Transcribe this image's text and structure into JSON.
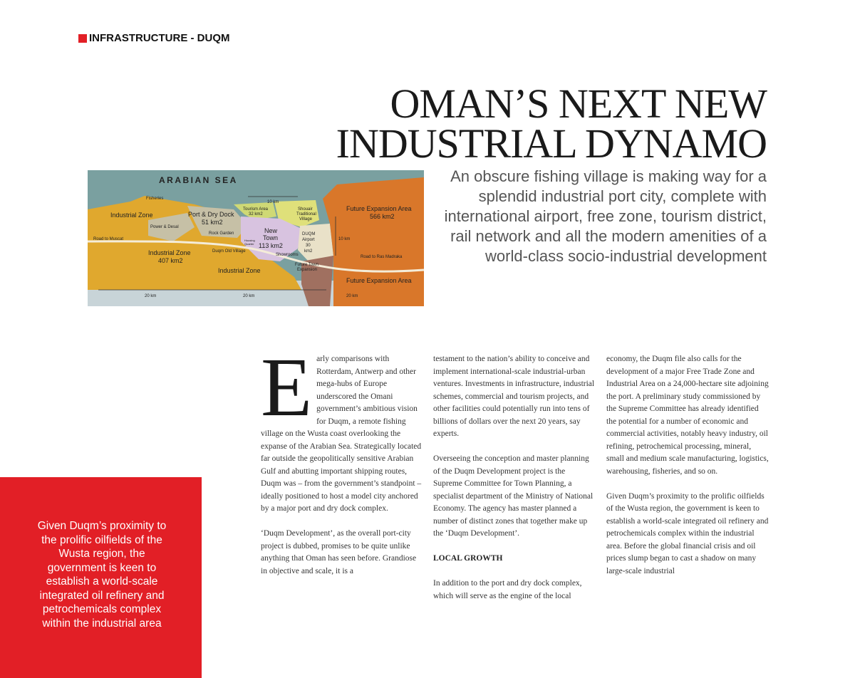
{
  "section_tag": "INFRASTRUCTURE - DUQM",
  "title": {
    "line1": "OMAN’S NEXT NEW",
    "line2": "INDUSTRIAL DYNAMO"
  },
  "subtitle": "An obscure fishing village is making way for a splendid industrial port city, complete with international airport, free zone, tourism district, rail network and all the modern amenities of a world-class socio-industrial development",
  "map": {
    "sea_label": "ARABIAN SEA",
    "labels": {
      "fisheries": "Fisheries",
      "industrial_zone_top": "Industrial Zone",
      "power_desal": "Power & Desal",
      "port_dry_dock": "Port & Dry Dock",
      "port_area": "51 km2",
      "rock_garden": "Rock Garden",
      "tourism_area": "Tourism Area",
      "tourism_km": "32 km2",
      "shouair": "Shouair",
      "traditional": "Traditional",
      "village": "Village",
      "new": "New",
      "town": "Town",
      "town_km": "113 km2",
      "housing": "Housing",
      "quarter": "Quarter",
      "duqm": "DUQM",
      "airport": "Airport",
      "airport_30": "30",
      "airport_km2": "km2",
      "road_muscat": "Road to Muscat",
      "industrial_zone_mid": "Industrial Zone",
      "industrial_zone_km": "407 km2",
      "duqm_old_village": "Duqm Old Village",
      "showrooms": "Showrooms",
      "industrial_zone_bottom": "Industrial Zone",
      "future_town": "Future Town",
      "expansion": "Expansion",
      "future_area_top": "Future Expansion Area",
      "future_area_km": "566 km2",
      "road_ras": "Road to Ras Madraka",
      "future_area_bottom": "Future Expansion Area",
      "scale_10km": "10 km",
      "scale_10km_v": "10 km",
      "scale_20km_1": "20 km",
      "scale_20km_2": "20 km",
      "scale_20km_3": "20 km"
    },
    "colors": {
      "sea": "#7aa0a0",
      "industrial": "#e0a82e",
      "expansion": "#d9772a",
      "town": "#d8c3e0",
      "tourism": "#cfd975",
      "land_pale": "#c6c0a6",
      "airport": "#e9e1c8",
      "brown": "#a07060",
      "bottom": "#c8d4d8"
    }
  },
  "body": {
    "dropcap": "E",
    "col1": [
      "arly comparisons with Rotterdam, Antwerp and other mega-hubs of Europe underscored the Omani government’s ambitious vision for Duqm, a remote fishing village on the Wusta coast overlooking the expanse of the Arabian Sea. Strategically located far outside the geopolitically sensitive Arabian Gulf and abutting important shipping routes, Duqm was – from the government’s standpoint – ideally positioned to host a model city anchored by a major port and dry dock complex.",
      "‘Duqm Development’, as the overall port-city project is dubbed, promises to be quite unlike anything that Oman has seen before. Grandiose in objective and scale, it is a"
    ],
    "col2": [
      "testament to the nation’s ability to conceive and implement international-scale industrial-urban ventures.  Investments in infrastructure, industrial schemes, commercial and tourism projects, and other facilities could potentially run into tens of billions of dollars over the next 20 years, say experts.",
      "Overseeing the conception and master planning of the Duqm Development project is the Supreme Committee for Town Planning, a specialist department of the Ministry of National Economy.  The agency has master planned a number of distinct zones that together make up the ‘Duqm Development’."
    ],
    "col2_heading": "LOCAL GROWTH",
    "col2_after": "In addition to the port and dry dock complex, which will serve as the engine of the local",
    "col3": [
      "economy, the Duqm file also calls for the development of a major Free Trade Zone and Industrial Area on a 24,000-hectare site adjoining the port. A preliminary study commissioned by the Supreme Committee has already identified the potential for a number of economic and commercial activities, notably heavy industry, oil refining, petrochemical processing, mineral, small and medium scale manufacturing, logistics, warehousing, fisheries, and so on.",
      "Given Duqm’s proximity to the prolific oilfields of the Wusta region, the government is keen to establish a world-scale integrated oil refinery and petrochemicals complex within the industrial area.  Before the global financial crisis and oil prices slump began to cast a shadow on many large-scale industrial"
    ]
  },
  "pull_quote": "Given Duqm’s proximity to the prolific oilfields of the Wusta region, the government is keen to establish a world-scale integrated oil refinery and petrochemicals complex within the industrial area"
}
